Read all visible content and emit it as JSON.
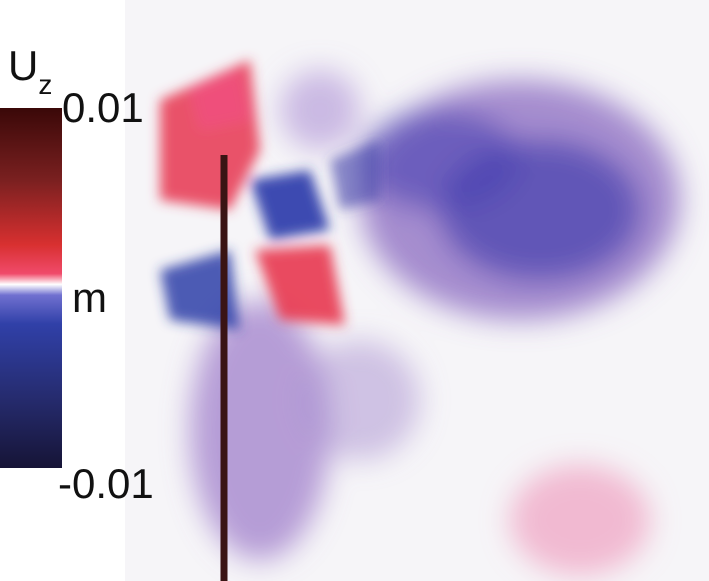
{
  "colorbar": {
    "label": "U",
    "label_subscript": "z",
    "top_label": "0.01",
    "middle_label": "m",
    "bottom_label": "-0.01"
  }
}
